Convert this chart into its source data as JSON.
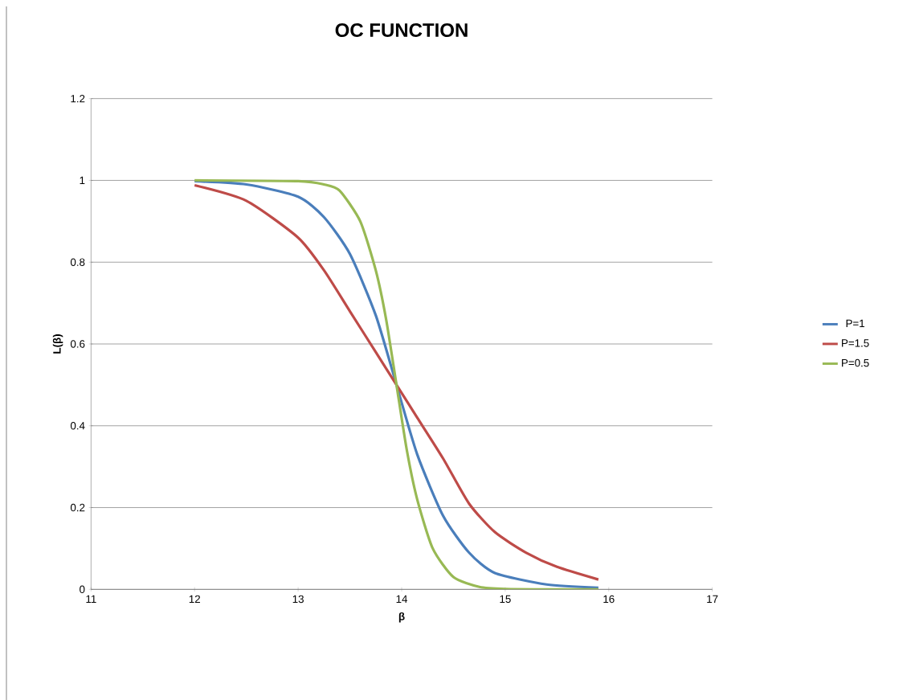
{
  "chart_data": {
    "type": "line",
    "title": "OC FUNCTION",
    "xlabel": "β",
    "ylabel": "L(β)",
    "xlim": [
      11,
      17
    ],
    "xticks": [
      11,
      12,
      13,
      14,
      15,
      16,
      17
    ],
    "ylim": [
      0,
      1.2
    ],
    "yticks": [
      0,
      0.2,
      0.4,
      0.6,
      0.8,
      1,
      1.2
    ],
    "grid": "y",
    "legend": "right",
    "series": [
      {
        "name": "P=1",
        "color": "#4a7ebb",
        "x": [
          12,
          12.5,
          13,
          13.25,
          13.5,
          13.75,
          13.95,
          14.15,
          14.4,
          14.65,
          14.9,
          15.4,
          15.9
        ],
        "values": [
          0.998,
          0.99,
          0.96,
          0.91,
          0.82,
          0.67,
          0.5,
          0.33,
          0.18,
          0.09,
          0.04,
          0.012,
          0.004
        ]
      },
      {
        "name": "P=1.5",
        "color": "#be4b48",
        "x": [
          12,
          12.5,
          13,
          13.25,
          13.5,
          13.75,
          13.95,
          14.15,
          14.4,
          14.65,
          14.9,
          15.2,
          15.5,
          15.9
        ],
        "values": [
          0.988,
          0.95,
          0.86,
          0.78,
          0.68,
          0.58,
          0.5,
          0.42,
          0.32,
          0.21,
          0.14,
          0.09,
          0.055,
          0.024
        ]
      },
      {
        "name": "P=0.5",
        "color": "#98b954",
        "x": [
          12,
          13,
          13.25,
          13.4,
          13.6,
          13.75,
          13.85,
          13.95,
          14.05,
          14.15,
          14.3,
          14.5,
          14.75,
          15,
          15.5,
          15.9
        ],
        "values": [
          1.0,
          0.998,
          0.99,
          0.975,
          0.9,
          0.78,
          0.66,
          0.5,
          0.34,
          0.22,
          0.1,
          0.03,
          0.006,
          0.001,
          0,
          0
        ]
      }
    ]
  }
}
